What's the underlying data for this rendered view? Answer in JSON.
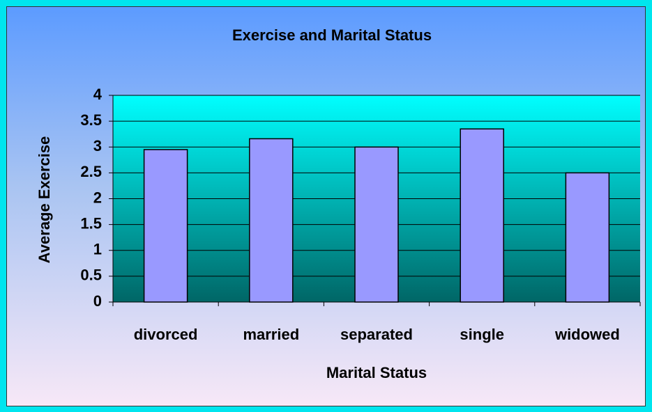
{
  "chart_data": {
    "type": "bar",
    "title": "Exercise and Marital Status",
    "x_label": "Marital Status",
    "y_label": "Average Exercise",
    "categories": [
      "divorced",
      "married",
      "separated",
      "single",
      "widowed"
    ],
    "values": [
      2.95,
      3.16,
      3.0,
      3.35,
      2.5
    ],
    "color": "#9999ff",
    "ylim": [
      0,
      4
    ],
    "yticks": [
      0,
      0.5,
      1,
      1.5,
      2,
      2.5,
      3,
      3.5,
      4
    ],
    "grid": true
  }
}
